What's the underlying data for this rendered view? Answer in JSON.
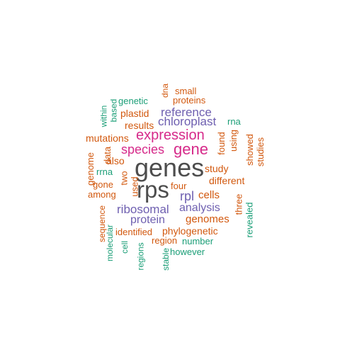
{
  "colors": {
    "dark_gray": "#4d4d4d",
    "magenta": "#d62a8a",
    "purple": "#6e5fb0",
    "orange": "#d2580e",
    "green": "#1b9e77"
  },
  "words": [
    {
      "id": "genes",
      "text": "genes",
      "color": "magenta_placeholder"
    }
  ]
}
